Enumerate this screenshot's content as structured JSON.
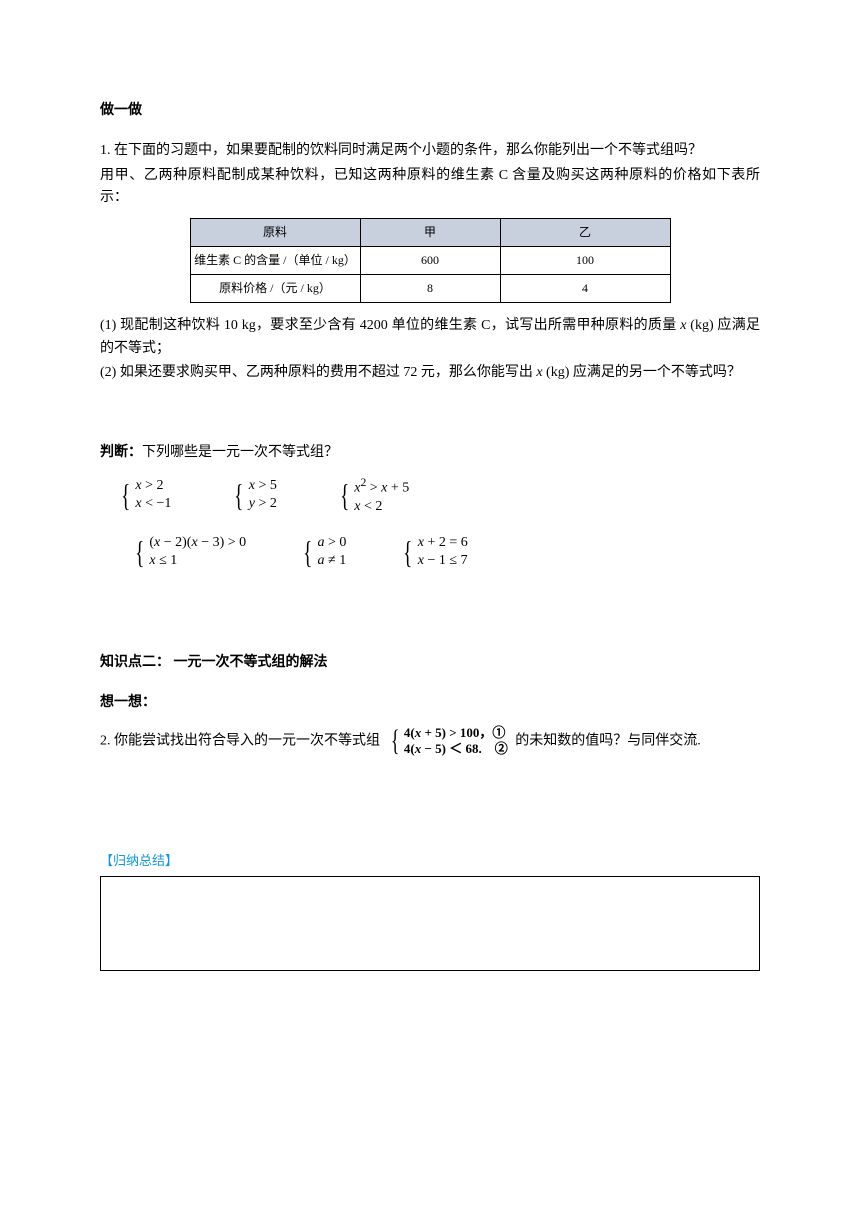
{
  "section1_title": "做一做",
  "q1_intro1": "1. 在下面的习题中，如果要配制的饮料同时满足两个小题的条件，那么你能列出一个不等式组吗？",
  "q1_intro2": "用甲、乙两种原料配制成某种饮料，已知这两种原料的维生素 C 含量及购买这两种原料的价格如下表所示：",
  "table": {
    "headers": [
      "原料",
      "甲",
      "乙"
    ],
    "row1": [
      "维生素 C 的含量 /（单位 / kg）",
      "600",
      "100"
    ],
    "row2": [
      "原料价格 /（元 / kg）",
      "8",
      "4"
    ],
    "header_bg": "#c8cfdd",
    "border_color": "#000000"
  },
  "q1_part1_a": "(1) 现配制这种饮料 10 kg，要求至少含有 4200 单位的维生素 C，试写出所需甲种原料的质量 ",
  "q1_part1_var": "x",
  "q1_part1_b": " (kg) 应满足的不等式；",
  "q1_part2_a": "(2) 如果还要求购买甲、乙两种原料的费用不超过 72 元，那么你能写出 ",
  "q1_part2_var": "x",
  "q1_part2_b": " (kg) 应满足的另一个不等式吗？",
  "judge_label": "判断：",
  "judge_text": "下列哪些是一元一次不等式组？",
  "systems_row1": [
    {
      "lines": [
        "<i>x</i> > 2",
        "<i>x</i> < −1"
      ]
    },
    {
      "lines": [
        "<i>x</i> > 5",
        "<i>y</i> > 2"
      ]
    },
    {
      "lines": [
        "<i>x</i><sup>2</sup> > <i>x</i> + 5",
        "<i>x</i> < 2"
      ]
    }
  ],
  "systems_row2": [
    {
      "lines": [
        "(<i>x</i> − 2)(<i>x</i> − 3) > 0",
        "<i>x</i> ≤ 1"
      ]
    },
    {
      "lines": [
        "<i>a</i> > 0",
        "<i>a</i> ≠ 1"
      ]
    },
    {
      "lines": [
        "<i>x</i> + 2 = 6",
        "<i>x</i> − 1 ≤ 7"
      ]
    }
  ],
  "kp2_title": "知识点二：  一元一次不等式组的解法",
  "think_title": "想一想：",
  "q2_a": "2. 你能尝试找出符合导入的一元一次不等式组 ",
  "q2_sys": {
    "lines": [
      "4(<i>x</i> + 5) > 100，①",
      "4(<i>x</i> − 5) ＜ 68.　②"
    ]
  },
  "q2_b": " 的未知数的值吗？与同伴交流.",
  "summary_label": "【归纳总结】",
  "colors": {
    "link_blue": "#1296db",
    "text": "#000000",
    "bg": "#ffffff"
  }
}
